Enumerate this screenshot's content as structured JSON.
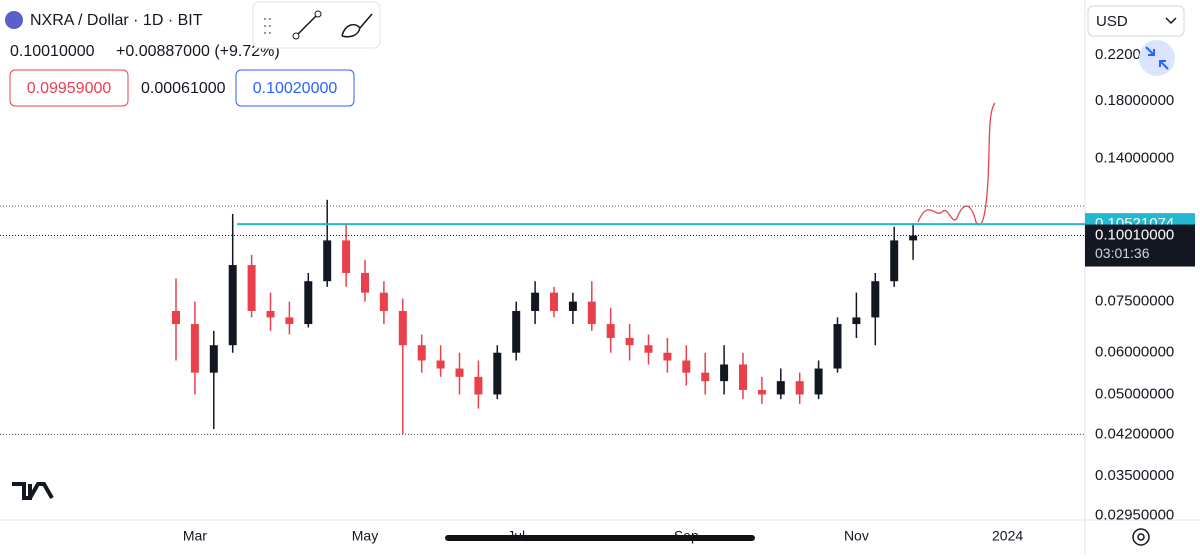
{
  "header": {
    "symbol": "NXRA / Dollar · 1D · BIT",
    "price": "0.10010000",
    "change": "+0.00887000 (+9.72%)",
    "bid": "0.09959000",
    "spread": "0.00061000",
    "ask": "0.10020000",
    "currency": "USD"
  },
  "chart_data": {
    "type": "candlestick",
    "log_scale": true,
    "up_color": "#131722",
    "down_color": "#e8414c",
    "categories": [
      null,
      "Mar",
      null,
      null,
      null,
      null,
      null,
      null,
      null,
      null,
      "May",
      null,
      null,
      null,
      null,
      null,
      null,
      null,
      "Jul",
      null,
      null,
      null,
      null,
      null,
      null,
      null,
      null,
      "Sep",
      null,
      null,
      null,
      null,
      null,
      null,
      null,
      null,
      "Nov",
      null,
      null,
      null,
      null,
      null,
      null,
      null,
      "2024",
      null
    ],
    "open": [
      0.072,
      0.068,
      0.055,
      0.062,
      0.088,
      0.072,
      0.07,
      0.068,
      0.082,
      0.098,
      0.085,
      0.078,
      0.072,
      0.062,
      0.058,
      0.056,
      0.054,
      0.05,
      0.06,
      0.072,
      0.078,
      0.072,
      0.075,
      0.068,
      0.064,
      0.062,
      0.06,
      0.058,
      0.055,
      0.053,
      0.057,
      0.051,
      0.05,
      0.053,
      0.05,
      0.056,
      0.068,
      0.07,
      0.082,
      0.098,
      null,
      null,
      null,
      null,
      null,
      null
    ],
    "high": [
      0.083,
      0.075,
      0.066,
      0.11,
      0.092,
      0.078,
      0.075,
      0.085,
      0.117,
      0.105,
      0.09,
      0.082,
      0.076,
      0.065,
      0.062,
      0.06,
      0.058,
      0.062,
      0.075,
      0.082,
      0.08,
      0.078,
      0.082,
      0.073,
      0.068,
      0.065,
      0.064,
      0.062,
      0.06,
      0.062,
      0.06,
      0.054,
      0.056,
      0.055,
      0.058,
      0.07,
      0.078,
      0.085,
      0.104,
      0.105,
      null,
      null,
      null,
      null,
      null,
      null
    ],
    "low": [
      0.058,
      0.05,
      0.043,
      0.06,
      0.07,
      0.066,
      0.065,
      0.067,
      0.08,
      0.08,
      0.075,
      0.068,
      0.042,
      0.055,
      0.054,
      0.05,
      0.047,
      0.049,
      0.058,
      0.068,
      0.07,
      0.068,
      0.066,
      0.06,
      0.058,
      0.057,
      0.055,
      0.052,
      0.05,
      0.05,
      0.049,
      0.048,
      0.049,
      0.048,
      0.049,
      0.055,
      0.064,
      0.062,
      0.08,
      0.09,
      null,
      null,
      null,
      null,
      null,
      null
    ],
    "close": [
      0.068,
      0.055,
      0.062,
      0.088,
      0.072,
      0.07,
      0.068,
      0.082,
      0.098,
      0.085,
      0.078,
      0.072,
      0.062,
      0.058,
      0.056,
      0.054,
      0.05,
      0.06,
      0.072,
      0.078,
      0.072,
      0.075,
      0.068,
      0.064,
      0.062,
      0.06,
      0.058,
      0.055,
      0.053,
      0.057,
      0.051,
      0.05,
      0.053,
      0.05,
      0.056,
      0.068,
      0.07,
      0.082,
      0.098,
      0.1001,
      null,
      null,
      null,
      null,
      null,
      null
    ],
    "ylim": [
      0.0289,
      0.28
    ],
    "yticks": [
      {
        "value": 0.22,
        "label": "0.22000000"
      },
      {
        "value": 0.18,
        "label": "0.18000000"
      },
      {
        "value": 0.14,
        "label": "0.14000000"
      },
      {
        "value": 0.075,
        "label": "0.07500000"
      },
      {
        "value": 0.06,
        "label": "0.06000000"
      },
      {
        "value": 0.05,
        "label": "0.05000000"
      },
      {
        "value": 0.042,
        "label": "0.04200000"
      },
      {
        "value": 0.035,
        "label": "0.03500000"
      },
      {
        "value": 0.0295,
        "label": "0.02950000"
      }
    ],
    "trend_line": {
      "value": 0.10521074,
      "label": "0.10521074",
      "color": "#22b8cf"
    },
    "last_price": {
      "value": 0.1001,
      "label": "0.10010000"
    },
    "countdown": "03:01:36",
    "dotted_levels": [
      0.1138,
      0.042
    ]
  }
}
